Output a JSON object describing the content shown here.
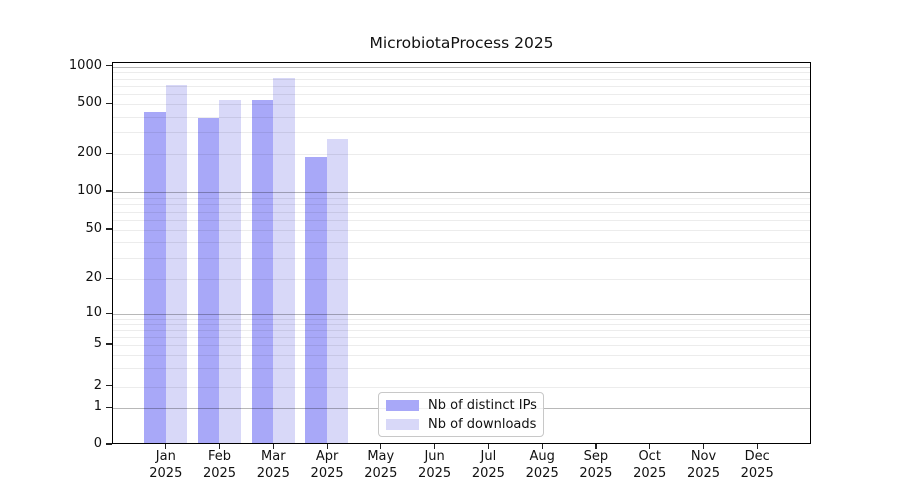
{
  "chart_data": {
    "type": "bar",
    "title": "MicrobiotaProcess 2025",
    "categories": [
      {
        "month": "Jan",
        "year": "2025"
      },
      {
        "month": "Feb",
        "year": "2025"
      },
      {
        "month": "Mar",
        "year": "2025"
      },
      {
        "month": "Apr",
        "year": "2025"
      },
      {
        "month": "May",
        "year": "2025"
      },
      {
        "month": "Jun",
        "year": "2025"
      },
      {
        "month": "Jul",
        "year": "2025"
      },
      {
        "month": "Aug",
        "year": "2025"
      },
      {
        "month": "Sep",
        "year": "2025"
      },
      {
        "month": "Oct",
        "year": "2025"
      },
      {
        "month": "Nov",
        "year": "2025"
      },
      {
        "month": "Dec",
        "year": "2025"
      }
    ],
    "series": [
      {
        "name": "Nb of distinct IPs",
        "color": "#a8a8f8",
        "values": [
          435,
          390,
          540,
          190,
          null,
          null,
          null,
          null,
          null,
          null,
          null,
          null
        ]
      },
      {
        "name": "Nb of downloads",
        "color": "#d8d8f8",
        "values": [
          720,
          545,
          810,
          265,
          null,
          null,
          null,
          null,
          null,
          null,
          null,
          null
        ]
      }
    ],
    "yticks": [
      0,
      1,
      2,
      5,
      10,
      20,
      50,
      100,
      200,
      500,
      1000
    ],
    "minor_gridline_values": [
      2,
      3,
      4,
      5,
      6,
      7,
      8,
      9,
      20,
      30,
      40,
      50,
      60,
      70,
      80,
      90,
      200,
      300,
      400,
      500,
      600,
      700,
      800,
      900
    ],
    "major_gridline_values": [
      1,
      10,
      100,
      1000
    ],
    "ylim": [
      0,
      1000
    ],
    "yscale": "symlog",
    "xlabel": "",
    "ylabel": "",
    "grid": true,
    "legend_position": "lower center",
    "colors": {
      "distinct_ips": "#a8a8f8",
      "downloads": "#d8d8f8",
      "major_grid": "#b8b8b8",
      "minor_grid": "#ececec",
      "spine": "#000000"
    }
  }
}
